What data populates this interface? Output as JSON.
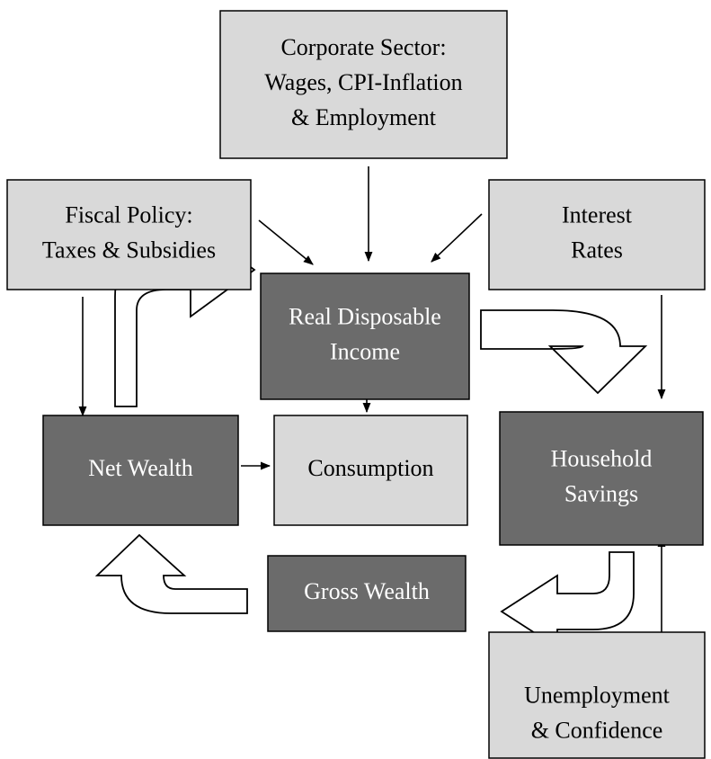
{
  "nodes": [
    {
      "lines": [
        "Corporate Sector:",
        "Wages, CPI-Inflation",
        "& Employment"
      ]
    },
    {
      "lines": [
        "Fiscal Policy:",
        "Taxes & Subsidies"
      ]
    },
    {
      "lines": [
        "Interest",
        "Rates"
      ]
    },
    {
      "lines": [
        "Real Disposable",
        "Income"
      ]
    },
    {
      "lines": [
        "Net Wealth"
      ]
    },
    {
      "lines": [
        "Consumption"
      ]
    },
    {
      "lines": [
        "Household",
        "Savings"
      ]
    },
    {
      "lines": [
        "Gross Wealth"
      ]
    },
    {
      "lines": [
        "Unemployment",
        "& Confidence"
      ]
    }
  ]
}
